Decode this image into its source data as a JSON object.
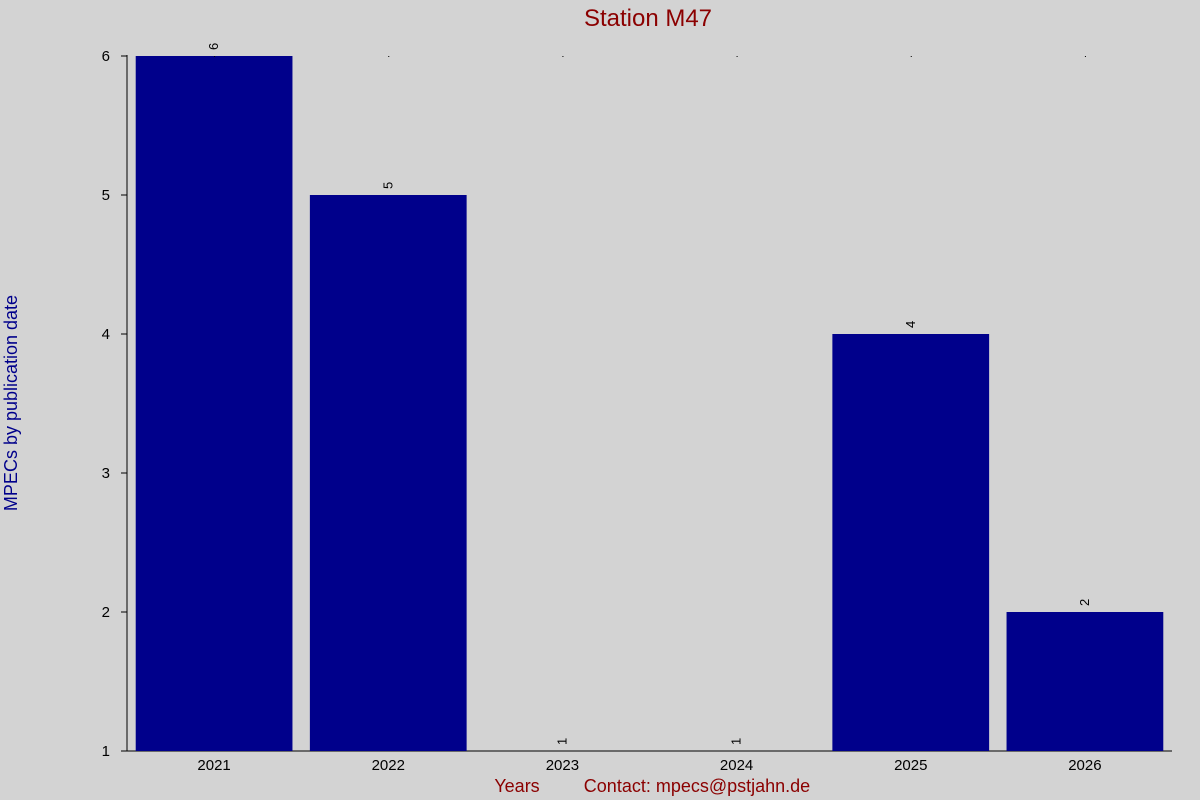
{
  "chart_data": {
    "type": "bar",
    "title": "Station M47",
    "xlabel": "Years",
    "ylabel": "MPECs by publication date",
    "footer": "Contact: mpecs@pstjahn.de",
    "categories": [
      "2021",
      "2022",
      "2023",
      "2024",
      "2025",
      "2026"
    ],
    "values": [
      6,
      5,
      1,
      1,
      4,
      2
    ],
    "ylim": [
      1,
      6
    ],
    "yticks": [
      1,
      2,
      3,
      4,
      5,
      6
    ],
    "grid": false,
    "legend": "none",
    "colors": {
      "bar": "#00008b",
      "title": "#8b0000",
      "xlabel": "#8b0000",
      "ylabel": "#00008b",
      "background": "#d3d3d3"
    }
  }
}
